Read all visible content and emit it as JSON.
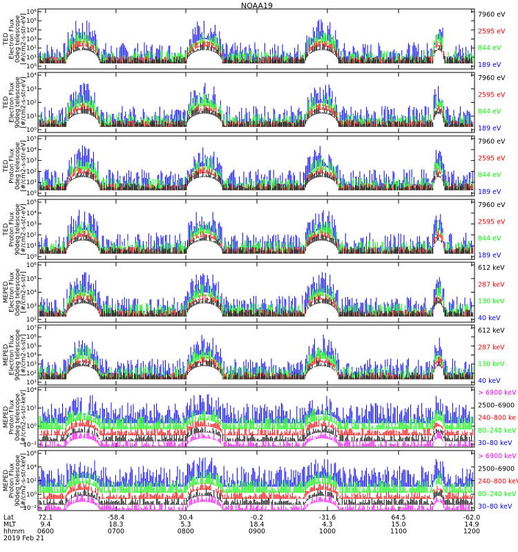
{
  "title": "NOAA19",
  "colors": {
    "black": "#000000",
    "red": "#ff0000",
    "green": "#00ff00",
    "blue": "#0000ff",
    "magenta": "#ff00ff",
    "background": "#ffffff"
  },
  "panels": [
    {
      "ylabel": [
        "TED",
        "Electron Flux",
        "0deg telescope",
        "[#/cm2-s-str-eV]"
      ],
      "yticks": [
        "10⁶",
        "10⁵",
        "10⁴",
        "10³",
        "10²",
        "10¹",
        "10⁰"
      ],
      "legend": [
        {
          "label": "7960 eV",
          "color": "#000000"
        },
        {
          "label": "2595 eV",
          "color": "#ff0000"
        },
        {
          "label": "844 eV",
          "color": "#00ff00"
        },
        {
          "label": "189 eV",
          "color": "#0000ff"
        }
      ]
    },
    {
      "ylabel": [
        "TED",
        "Electron Flux",
        "90deg telescope",
        "[#/cm2-s-str-eV]"
      ],
      "yticks": [
        "10⁴",
        "10³",
        "10²",
        "10¹",
        "10⁰"
      ],
      "legend": [
        {
          "label": "7960 eV",
          "color": "#000000"
        },
        {
          "label": "2595 eV",
          "color": "#ff0000"
        },
        {
          "label": "844 eV",
          "color": "#00ff00"
        },
        {
          "label": "189 eV",
          "color": "#0000ff"
        }
      ]
    },
    {
      "ylabel": [
        "TED",
        "Proton Flux",
        "0deg telescope",
        "[#/cm2-s-str-eV]"
      ],
      "yticks": [
        "10⁵",
        "10⁴",
        "10³",
        "10²",
        "10¹",
        "10⁰"
      ],
      "legend": [
        {
          "label": "7960 eV",
          "color": "#000000"
        },
        {
          "label": "2595 eV",
          "color": "#ff0000"
        },
        {
          "label": "844 eV",
          "color": "#00ff00"
        },
        {
          "label": "189 eV",
          "color": "#0000ff"
        }
      ]
    },
    {
      "ylabel": [
        "TED",
        "Proton Flux",
        "90deg telescope",
        "[#/cm2-s-str-eV]"
      ],
      "yticks": [
        "10⁵",
        "10⁴",
        "10³",
        "10²",
        "10¹",
        "10⁰"
      ],
      "legend": [
        {
          "label": "7960 eV",
          "color": "#000000"
        },
        {
          "label": "2595 eV",
          "color": "#ff0000"
        },
        {
          "label": "844 eV",
          "color": "#00ff00"
        },
        {
          "label": "189 eV",
          "color": "#0000ff"
        }
      ]
    },
    {
      "ylabel": [
        "MEPED",
        "Electron Flux",
        "0deg telescope",
        "[#/cm2-s-str]"
      ],
      "yticks": [
        "10⁶",
        "10⁵",
        "10⁴",
        "10³",
        "10²"
      ],
      "legend": [
        {
          "label": "612 keV",
          "color": "#000000"
        },
        {
          "label": "287 keV",
          "color": "#ff0000"
        },
        {
          "label": "130 keV",
          "color": "#00ff00"
        },
        {
          "label": "40 keV",
          "color": "#0000ff"
        }
      ]
    },
    {
      "ylabel": [
        "MEPED",
        "Electron Flux",
        "90deg telescope",
        "[#/cm2-s-str]"
      ],
      "yticks": [
        "10⁷",
        "10⁶",
        "10⁵",
        "10⁴",
        "10³",
        "10²",
        "10¹"
      ],
      "legend": [
        {
          "label": "612 keV",
          "color": "#000000"
        },
        {
          "label": "287 keV",
          "color": "#ff0000"
        },
        {
          "label": "130 keV",
          "color": "#00ff00"
        },
        {
          "label": "40 keV",
          "color": "#0000ff"
        }
      ]
    },
    {
      "ylabel": [
        "MEPED",
        "Proton Flux",
        "0deg telescope",
        "[#/cm2-s-str-keV]"
      ],
      "yticks": [
        "10⁴",
        "10²",
        "10⁰",
        "10⁻²"
      ],
      "legend": [
        {
          "label": "> 6900 keV",
          "color": "#ff00ff"
        },
        {
          "label": "2500–6900",
          "color": "#000000"
        },
        {
          "label": "240–800 ke",
          "color": "#ff0000"
        },
        {
          "label": "80–240 keV",
          "color": "#00ff00"
        },
        {
          "label": "30–80 keV",
          "color": "#0000ff"
        }
      ]
    },
    {
      "ylabel": [
        "MEPED",
        "Proton Flux",
        "90deg telescope",
        "[#/cm2-s-str-keV]"
      ],
      "yticks": [
        "10⁶",
        "10⁴",
        "10²",
        "10⁰",
        "10⁻²"
      ],
      "legend": [
        {
          "label": "> 6900 keV",
          "color": "#ff00ff"
        },
        {
          "label": "2500–6900",
          "color": "#000000"
        },
        {
          "label": "240–800 keV",
          "color": "#ff0000"
        },
        {
          "label": "80–240 keV",
          "color": "#00ff00"
        },
        {
          "label": "30–80 keV",
          "color": "#0000ff"
        }
      ]
    }
  ],
  "chart_data": {
    "type": "line",
    "title": "NOAA19",
    "x_axis": {
      "rows": [
        {
          "name": "Lat",
          "values": [
            "72.1",
            "-58.4",
            "30.4",
            "-0.2",
            "-31.6",
            "64.5",
            "-62.0"
          ]
        },
        {
          "name": "MLT",
          "values": [
            "9.4",
            "18.3",
            "5.3",
            "18.4",
            "4.3",
            "15.0",
            "14.9"
          ]
        },
        {
          "name": "hhmm",
          "values": [
            "0600",
            "0700",
            "0800",
            "0900",
            "1000",
            "1100",
            "1200"
          ]
        }
      ],
      "date": "2019 Feb 21",
      "hours": [
        6,
        7,
        8,
        9,
        10,
        11,
        12
      ]
    },
    "scale": "log",
    "grid": false,
    "legend_position": "right"
  }
}
